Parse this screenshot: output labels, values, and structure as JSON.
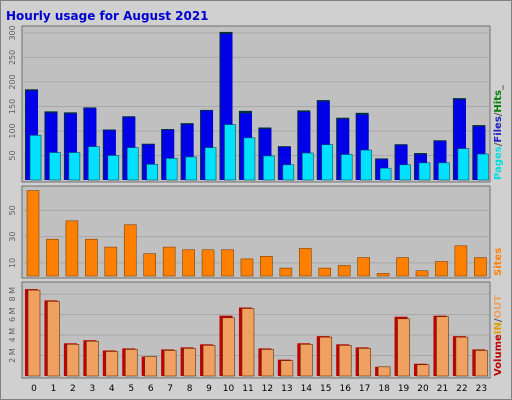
{
  "chart_data": [
    {
      "type": "bar",
      "title": "Hourly usage for August 2021",
      "categories": [
        "0",
        "1",
        "2",
        "3",
        "4",
        "5",
        "6",
        "7",
        "8",
        "9",
        "10",
        "11",
        "12",
        "13",
        "14",
        "15",
        "16",
        "17",
        "18",
        "19",
        "20",
        "21",
        "22",
        "23"
      ],
      "y_ticks": [
        50,
        100,
        150,
        200,
        250,
        300
      ],
      "ylim": [
        0,
        310
      ],
      "legend": [
        {
          "text": "Pages",
          "color": "#00e0e0"
        },
        {
          "text": "/",
          "color": "#555555"
        },
        {
          "text": "Files",
          "color": "#2020c0"
        },
        {
          "text": "/",
          "color": "#555555"
        },
        {
          "text": "Hits",
          "color": "#008000"
        },
        {
          "text": "_",
          "color": "#555555"
        }
      ],
      "series": [
        {
          "name": "Hits",
          "color": "#008040",
          "values": [
            185,
            140,
            138,
            148,
            103,
            130,
            74,
            104,
            116,
            143,
            302,
            141,
            107,
            69,
            142,
            163,
            127,
            137,
            44,
            73,
            55,
            81,
            167,
            112
          ]
        },
        {
          "name": "Files",
          "color": "#0000e8",
          "values": [
            182,
            137,
            135,
            146,
            101,
            128,
            72,
            102,
            113,
            141,
            298,
            136,
            104,
            67,
            139,
            160,
            124,
            133,
            42,
            71,
            52,
            79,
            164,
            109
          ]
        },
        {
          "name": "Pages",
          "color": "#00e0ff",
          "values": [
            91,
            56,
            56,
            68,
            50,
            66,
            32,
            44,
            47,
            66,
            113,
            86,
            49,
            31,
            55,
            72,
            52,
            61,
            24,
            31,
            35,
            35,
            64,
            53
          ]
        }
      ]
    },
    {
      "type": "bar",
      "categories": [
        "0",
        "1",
        "2",
        "3",
        "4",
        "5",
        "6",
        "7",
        "8",
        "9",
        "10",
        "11",
        "12",
        "13",
        "14",
        "15",
        "16",
        "17",
        "18",
        "19",
        "20",
        "21",
        "22",
        "23"
      ],
      "y_ticks": [
        10,
        30,
        50
      ],
      "ylim": [
        0,
        67
      ],
      "legend": [
        {
          "text": "Sites",
          "color": "#ff8000"
        }
      ],
      "series": [
        {
          "name": "Sites",
          "color": "#ff8000",
          "values": [
            65,
            28,
            42,
            28,
            22,
            39,
            17,
            22,
            20,
            20,
            20,
            13,
            15,
            6,
            21,
            6,
            8,
            14,
            2,
            14,
            4,
            11,
            23,
            14
          ]
        }
      ]
    },
    {
      "type": "bar",
      "categories": [
        "0",
        "1",
        "2",
        "3",
        "4",
        "5",
        "6",
        "7",
        "8",
        "9",
        "10",
        "11",
        "12",
        "13",
        "14",
        "15",
        "16",
        "17",
        "18",
        "19",
        "20",
        "21",
        "22",
        "23"
      ],
      "y_ticks": [
        "2 M",
        "4 M",
        "6 M",
        "8 M"
      ],
      "ylim": [
        0,
        9
      ],
      "y_tick_values": [
        2,
        4,
        6,
        8
      ],
      "legend": [
        {
          "text": "Volume",
          "color": "#c00000"
        },
        {
          "text": "IN",
          "color": "#e0a000"
        },
        {
          "text": "/",
          "color": "#555555"
        },
        {
          "text": "OUT",
          "color": "#f0a060"
        }
      ],
      "series": [
        {
          "name": "Volume",
          "color": "#c00000",
          "values": [
            8.5,
            7.4,
            3.2,
            3.5,
            2.5,
            2.7,
            1.9,
            2.6,
            2.8,
            3.1,
            5.9,
            6.7,
            2.7,
            1.6,
            3.2,
            3.9,
            3.1,
            2.8,
            0.9,
            5.8,
            1.2,
            5.9,
            3.9,
            2.6
          ]
        },
        {
          "name": "IN",
          "color": "#f0a060",
          "values": [
            8.4,
            7.3,
            3.1,
            3.4,
            2.4,
            2.6,
            1.9,
            2.5,
            2.7,
            3.0,
            5.7,
            6.6,
            2.6,
            1.5,
            3.1,
            3.8,
            3.0,
            2.7,
            0.9,
            5.6,
            1.1,
            5.8,
            3.8,
            2.5
          ]
        }
      ]
    }
  ]
}
